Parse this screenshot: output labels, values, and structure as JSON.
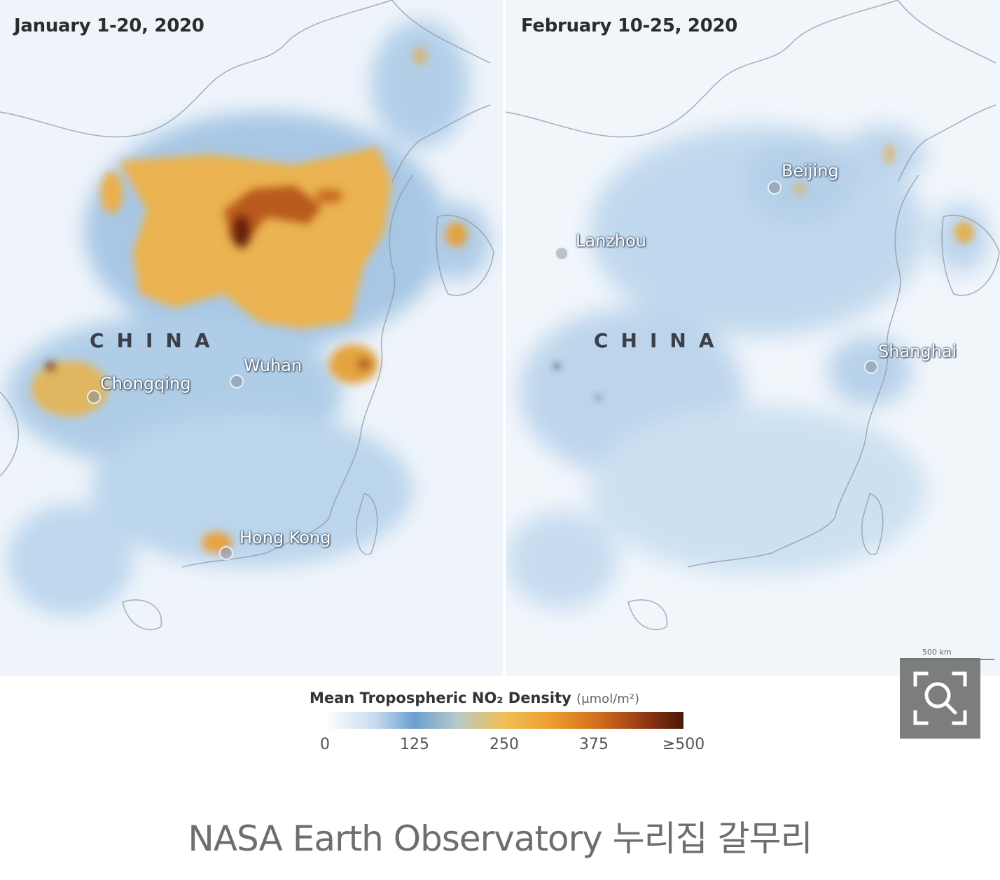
{
  "panels": [
    {
      "title": "January 1-20, 2020",
      "country": "CHINA",
      "cities": [
        {
          "name": "Chongqing"
        },
        {
          "name": "Wuhan"
        },
        {
          "name": "Hong Kong"
        }
      ]
    },
    {
      "title": "February 10-25, 2020",
      "country": "CHINA",
      "cities": [
        {
          "name": "Beijing"
        },
        {
          "name": "Lanzhou"
        },
        {
          "name": "Shanghai"
        }
      ]
    }
  ],
  "legend": {
    "title": "Mean Tropospheric NO₂ Density",
    "unit": "(μmol/m²)",
    "ticks": [
      "0",
      "125",
      "250",
      "375",
      "≥500"
    ],
    "colors": {
      "low": "#ffffff",
      "mid_low": "#6a9fd0",
      "mid": "#f0bf54",
      "high": "#cf6a1c",
      "max": "#4a1808"
    }
  },
  "scale_bar": {
    "label": "500 km"
  },
  "zoom_button": {
    "icon": "zoom-search-icon"
  },
  "caption": "NASA Earth Observatory 누리집 갈무리"
}
